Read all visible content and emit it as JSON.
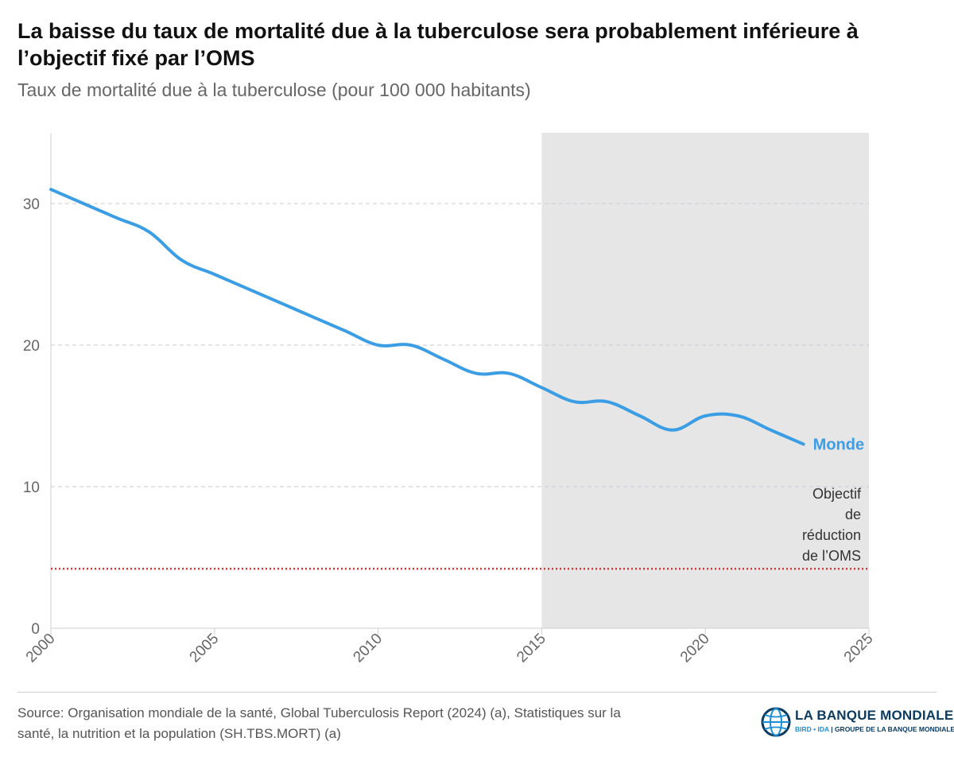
{
  "header": {
    "title": "La baisse du taux de mortalité due à la tuberculose sera probablement inférieure à l’objectif fixé par l’OMS",
    "subtitle": "Taux de mortalité due à la tuberculose (pour 100 000 habitants)"
  },
  "chart_data": {
    "type": "line",
    "title": "La baisse du taux de mortalité due à la tuberculose sera probablement inférieure à l’objectif fixé par l’OMS",
    "ylabel": "Taux de mortalité due à la tuberculose (pour 100 000 habitants)",
    "xlabel": "",
    "xlim": [
      2000,
      2025
    ],
    "ylim": [
      0,
      35
    ],
    "x_ticks": [
      2000,
      2005,
      2010,
      2015,
      2020,
      2025
    ],
    "y_ticks": [
      0,
      10,
      20,
      30
    ],
    "grid": "horizontal dashed",
    "series": [
      {
        "name": "Monde",
        "color": "#3b9de3",
        "x": [
          2000,
          2001,
          2002,
          2003,
          2004,
          2005,
          2006,
          2007,
          2008,
          2009,
          2010,
          2011,
          2012,
          2013,
          2014,
          2015,
          2016,
          2017,
          2018,
          2019,
          2020,
          2021,
          2022,
          2023
        ],
        "values": [
          31,
          30,
          29,
          28,
          26,
          25,
          24,
          23,
          22,
          21,
          20,
          20,
          19,
          18,
          18,
          17,
          16,
          16,
          15,
          14,
          15,
          15,
          14,
          13
        ]
      }
    ],
    "reference_line": {
      "label": "Objectif de réduction de l’OMS",
      "label_lines": [
        "Objectif",
        "de",
        "réduction",
        "de l’OMS"
      ],
      "value": 4.2,
      "color": "#d43a3a",
      "style": "dotted"
    },
    "shaded_region": {
      "from": 2015,
      "to": 2025,
      "color": "#e6e6e6"
    }
  },
  "footer": {
    "source_line1": "Source: Organisation mondiale de la santé, Global Tuberculosis Report (2024) (a), Statistiques sur la",
    "source_line2": "santé, la nutrition et la population (SH.TBS.MORT) (a)",
    "logo_name": "LA BANQUE MONDIALE",
    "logo_sub_ida": "BIRD • IDA",
    "logo_sub_group": "GROUPE DE LA BANQUE MONDIALE",
    "logo_icon": "globe-icon"
  }
}
